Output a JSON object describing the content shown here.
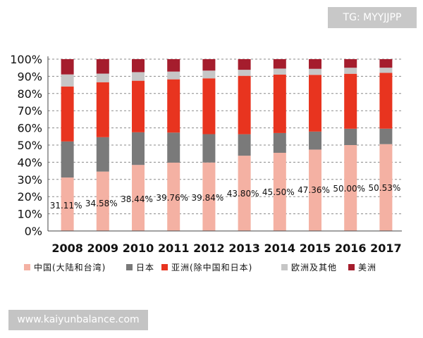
{
  "watermarks": {
    "top": "TG: MYYJJPP",
    "bottom": "www.kaiyunbalance.com"
  },
  "chart_data": {
    "type": "bar",
    "stacked": true,
    "ylim": [
      0,
      100
    ],
    "yticks": [
      "0%",
      "10%",
      "20%",
      "30%",
      "40%",
      "50%",
      "60%",
      "70%",
      "80%",
      "90%",
      "100%"
    ],
    "grid": "dashed-horizontal",
    "legend_position": "bottom",
    "categories": [
      "2008",
      "2009",
      "2010",
      "2011",
      "2012",
      "2013",
      "2014",
      "2015",
      "2016",
      "2017"
    ],
    "series": [
      {
        "name": "中国(大陆和台湾)",
        "color": "#f4b1a3",
        "values": [
          31.11,
          34.58,
          38.44,
          39.76,
          39.84,
          43.8,
          45.5,
          47.36,
          50.0,
          50.53
        ]
      },
      {
        "name": "日本",
        "color": "#7a7a7a",
        "values": [
          21,
          20,
          19,
          17.5,
          16.5,
          12.5,
          11.5,
          10.5,
          9.5,
          9
        ]
      },
      {
        "name": "亚洲(除中国和日本)",
        "color": "#e8341f",
        "values": [
          32,
          32,
          30,
          31,
          32.5,
          34,
          34,
          33,
          32,
          32.5
        ]
      },
      {
        "name": "欧洲及其他",
        "color": "#c6c6c6",
        "values": [
          7,
          5,
          5,
          4.5,
          4.5,
          3.5,
          3.5,
          3.5,
          3.5,
          3
        ]
      },
      {
        "name": "美洲",
        "color": "#a51d2d",
        "values": [
          8.89,
          8.42,
          7.56,
          7.24,
          6.66,
          6.2,
          5.5,
          5.64,
          5.0,
          4.97
        ]
      }
    ],
    "data_labels": [
      "31.11%",
      "34.58%",
      "38.44%",
      "39.76%",
      "39.84%",
      "43.80%",
      "45.50%",
      "47.36%",
      "50.00%",
      "50.53%"
    ]
  }
}
